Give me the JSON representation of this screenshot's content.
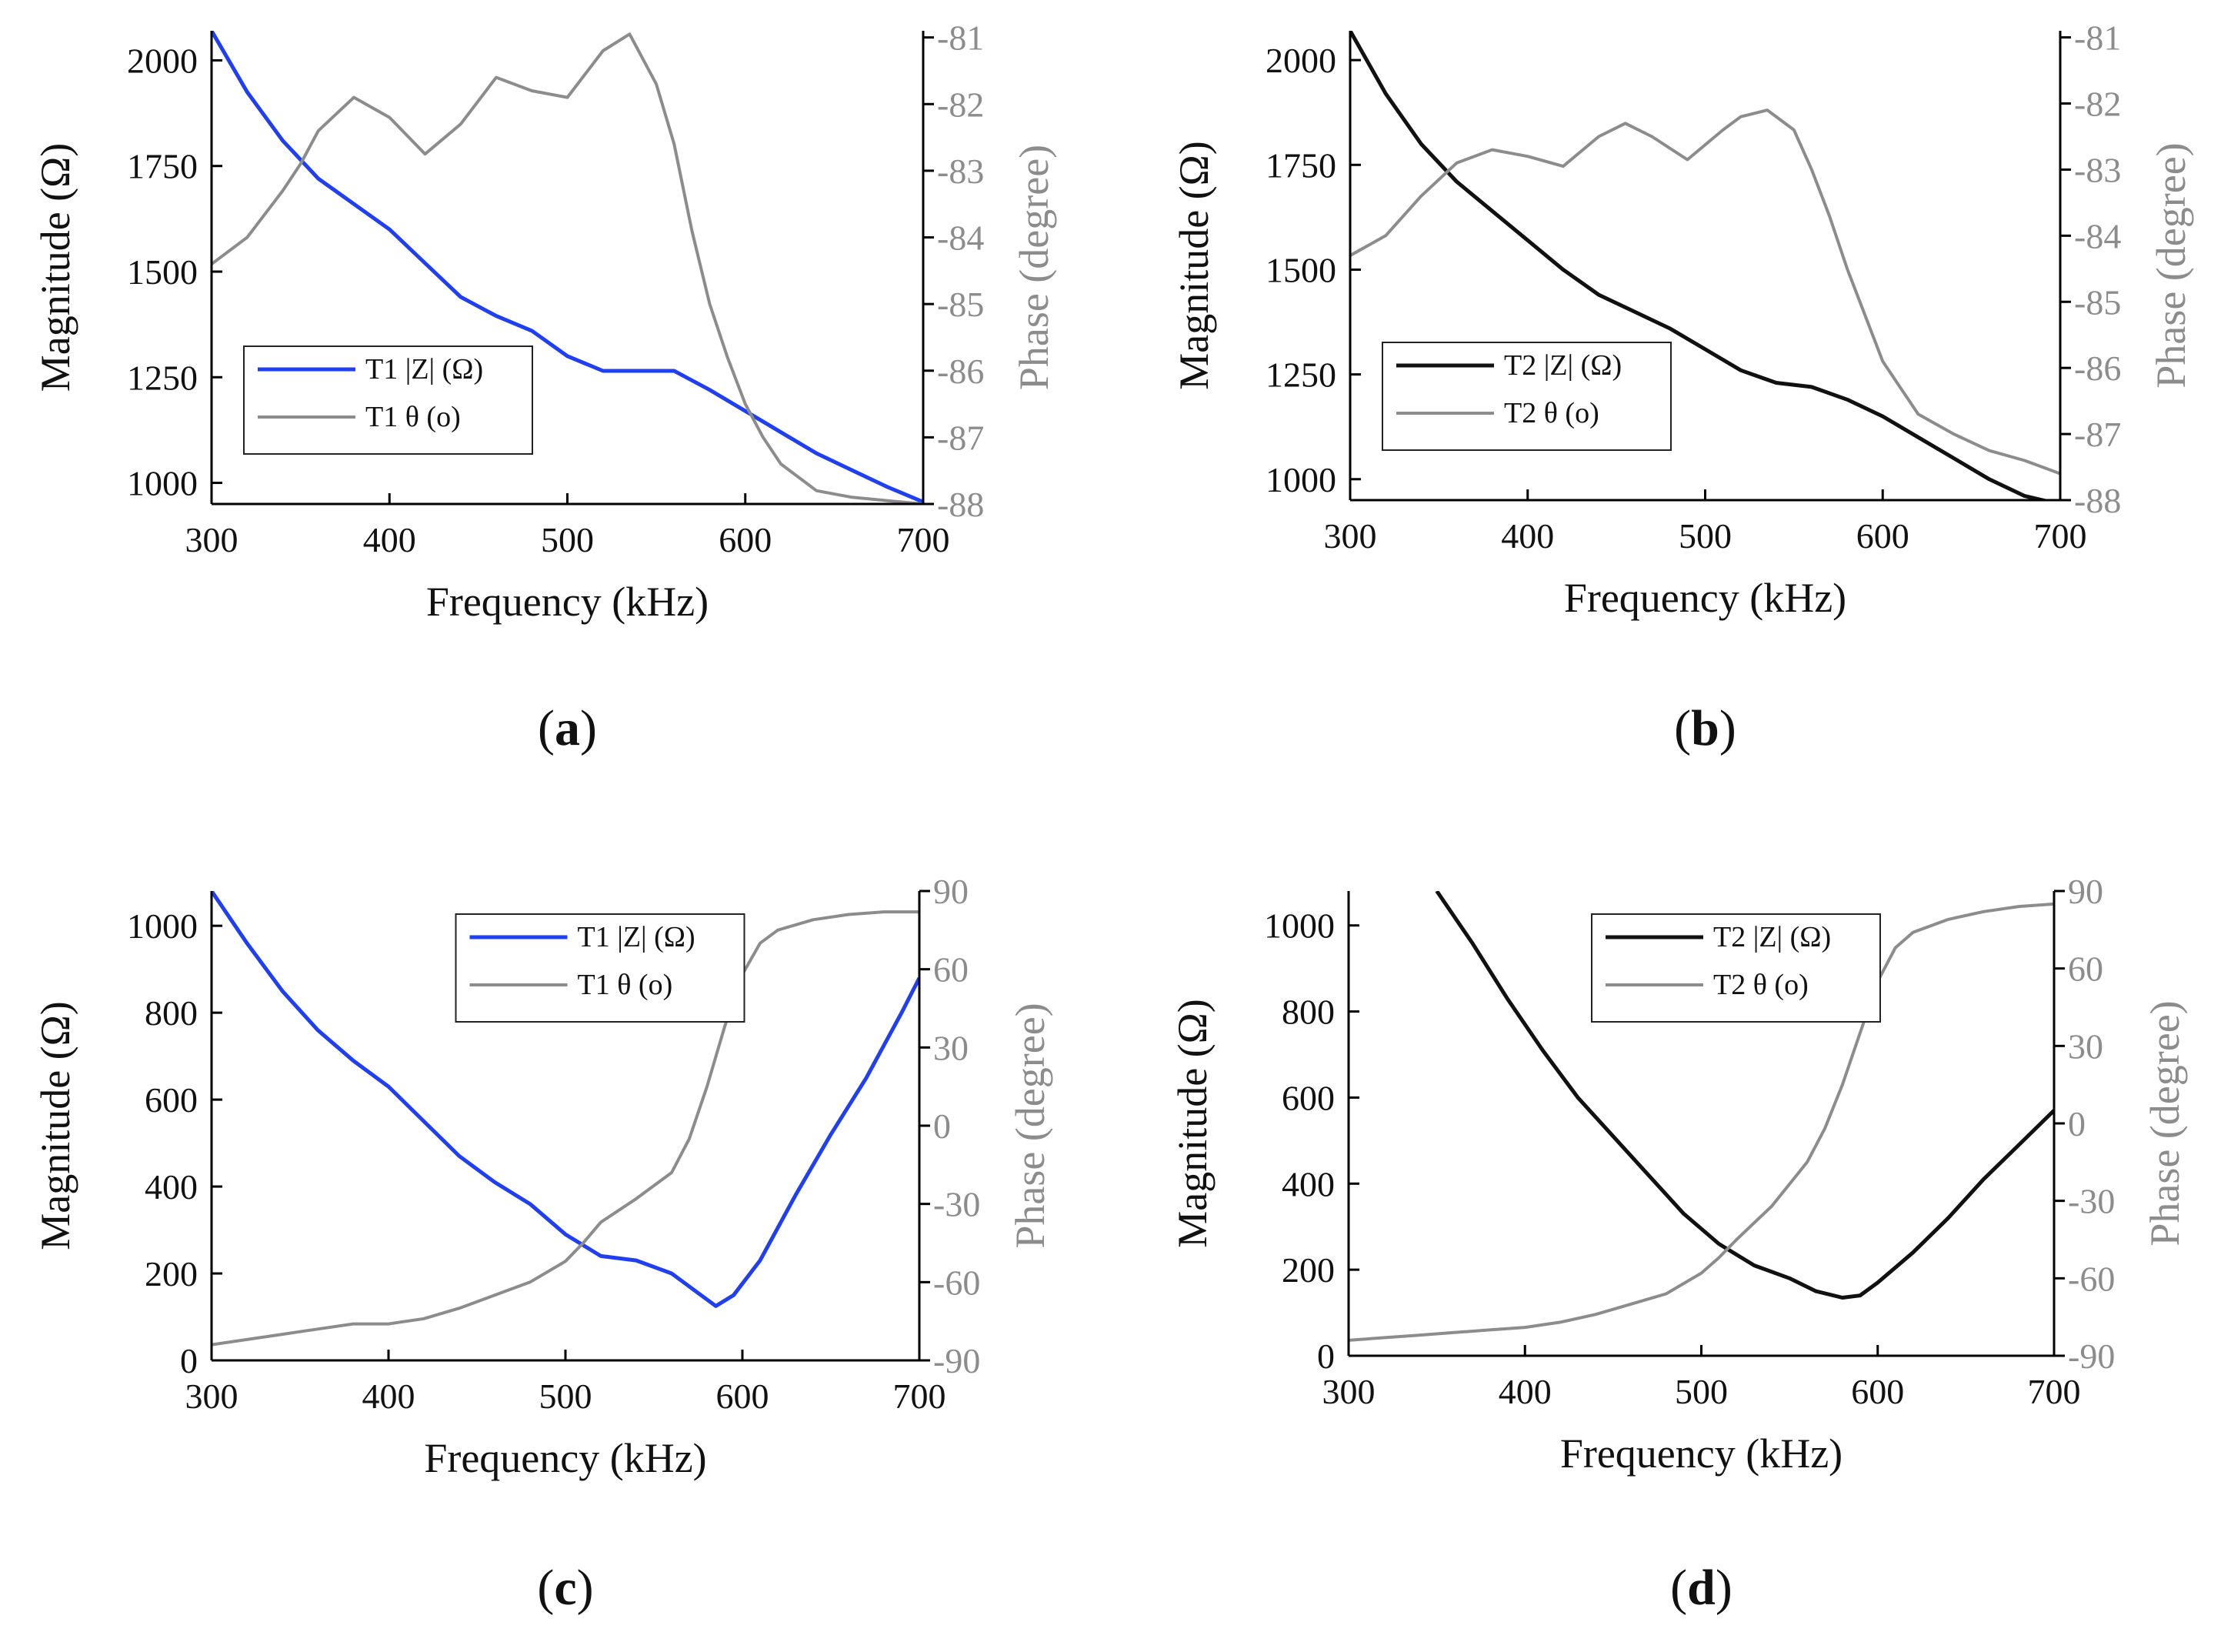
{
  "colors": {
    "blue": "#1f3ff0",
    "black": "#111111",
    "gray": "#8c8c8c",
    "axis": "#000000"
  },
  "chart_data": [
    {
      "type": "line",
      "panel_label": "a",
      "xlabel": "Frequency (kHz)",
      "ylabel": "Magnitude (Ω)",
      "y2label": "Phase (degree)",
      "xlim": [
        300,
        700
      ],
      "ylim": [
        950,
        2070
      ],
      "y2lim": [
        -88,
        -80.9
      ],
      "xticks": [
        300,
        400,
        500,
        600,
        700
      ],
      "yticks": [
        1000,
        1250,
        1500,
        1750,
        2000
      ],
      "y2ticks": [
        -88,
        -87,
        -86,
        -85,
        -84,
        -83,
        -82,
        -81
      ],
      "legend_position": "lower-left",
      "series": [
        {
          "name": "T1 |Z| (Ω)",
          "axis": "left",
          "color": "#1f3ff0",
          "x": [
            300,
            320,
            340,
            360,
            380,
            400,
            420,
            440,
            460,
            480,
            500,
            520,
            540,
            560,
            580,
            600,
            620,
            640,
            660,
            680,
            700
          ],
          "values": [
            2070,
            1925,
            1810,
            1720,
            1660,
            1600,
            1520,
            1440,
            1395,
            1360,
            1300,
            1265,
            1265,
            1265,
            1220,
            1170,
            1120,
            1070,
            1030,
            990,
            955
          ]
        },
        {
          "name": "T1 θ (o)",
          "axis": "right",
          "color": "#8c8c8c",
          "x": [
            300,
            320,
            340,
            350,
            360,
            380,
            400,
            420,
            440,
            460,
            480,
            500,
            520,
            535,
            550,
            560,
            570,
            580,
            590,
            600,
            610,
            620,
            640,
            660,
            680,
            700
          ],
          "values": [
            -84.4,
            -84.0,
            -83.3,
            -82.9,
            -82.4,
            -81.9,
            -82.2,
            -82.75,
            -82.3,
            -81.6,
            -81.8,
            -81.9,
            -81.2,
            -80.95,
            -81.7,
            -82.6,
            -83.9,
            -85.0,
            -85.8,
            -86.5,
            -87.0,
            -87.4,
            -87.8,
            -87.9,
            -87.95,
            -88.0
          ]
        }
      ]
    },
    {
      "type": "line",
      "panel_label": "b",
      "xlabel": "Frequency (kHz)",
      "ylabel": "Magnitude (Ω)",
      "y2label": "Phase (degree)",
      "xlim": [
        300,
        700
      ],
      "ylim": [
        950,
        2070
      ],
      "y2lim": [
        -88,
        -80.9
      ],
      "xticks": [
        300,
        400,
        500,
        600,
        700
      ],
      "yticks": [
        1000,
        1250,
        1500,
        1750,
        2000
      ],
      "y2ticks": [
        -88,
        -87,
        -86,
        -85,
        -84,
        -83,
        -82,
        -81
      ],
      "legend_position": "lower-left",
      "series": [
        {
          "name": "T2 |Z| (Ω)",
          "axis": "left",
          "color": "#111111",
          "x": [
            300,
            320,
            340,
            360,
            380,
            400,
            420,
            440,
            460,
            480,
            500,
            520,
            540,
            560,
            580,
            600,
            620,
            640,
            660,
            680,
            700
          ],
          "values": [
            2070,
            1920,
            1800,
            1710,
            1640,
            1570,
            1500,
            1440,
            1400,
            1360,
            1310,
            1260,
            1230,
            1220,
            1190,
            1150,
            1100,
            1050,
            1000,
            960,
            940
          ]
        },
        {
          "name": "T2 θ (o)",
          "axis": "right",
          "color": "#8c8c8c",
          "x": [
            300,
            320,
            340,
            360,
            380,
            400,
            420,
            440,
            455,
            470,
            490,
            510,
            520,
            535,
            550,
            560,
            570,
            580,
            600,
            620,
            640,
            660,
            680,
            700
          ],
          "values": [
            -84.3,
            -84.0,
            -83.4,
            -82.9,
            -82.7,
            -82.8,
            -82.95,
            -82.5,
            -82.3,
            -82.5,
            -82.85,
            -82.4,
            -82.2,
            -82.1,
            -82.4,
            -83.0,
            -83.7,
            -84.5,
            -85.9,
            -86.7,
            -87.0,
            -87.25,
            -87.4,
            -87.6
          ]
        }
      ]
    },
    {
      "type": "line",
      "panel_label": "c",
      "xlabel": "Frequency (kHz)",
      "ylabel": "Magnitude (Ω)",
      "y2label": "Phase (degree)",
      "xlim": [
        300,
        700
      ],
      "ylim": [
        0,
        1080
      ],
      "y2lim": [
        -90,
        90
      ],
      "xticks": [
        300,
        400,
        500,
        600,
        700
      ],
      "yticks": [
        0,
        200,
        400,
        600,
        800,
        1000
      ],
      "y2ticks": [
        -90,
        -60,
        -30,
        0,
        30,
        60,
        90
      ],
      "legend_position": "top-center",
      "series": [
        {
          "name": "T1 |Z| (Ω)",
          "axis": "left",
          "color": "#1f3ff0",
          "x": [
            300,
            320,
            340,
            360,
            380,
            400,
            420,
            440,
            460,
            480,
            500,
            520,
            540,
            560,
            575,
            585,
            595,
            610,
            630,
            650,
            670,
            690,
            700
          ],
          "values": [
            1080,
            960,
            850,
            760,
            690,
            630,
            550,
            470,
            410,
            360,
            290,
            240,
            230,
            200,
            155,
            125,
            150,
            230,
            380,
            520,
            650,
            800,
            880
          ]
        },
        {
          "name": "T1 θ (o)",
          "axis": "right",
          "color": "#8c8c8c",
          "x": [
            300,
            320,
            340,
            360,
            380,
            400,
            420,
            440,
            460,
            480,
            500,
            510,
            520,
            540,
            560,
            570,
            580,
            590,
            600,
            610,
            620,
            640,
            660,
            680,
            700
          ],
          "values": [
            -84,
            -82,
            -80,
            -78,
            -76,
            -76,
            -74,
            -70,
            -65,
            -60,
            -52,
            -45,
            -37,
            -28,
            -18,
            -5,
            15,
            38,
            58,
            70,
            75,
            79,
            81,
            82,
            82
          ]
        }
      ]
    },
    {
      "type": "line",
      "panel_label": "d",
      "xlabel": "Frequency (kHz)",
      "ylabel": "Magnitude (Ω)",
      "y2label": "Phase (degree)",
      "xlim": [
        300,
        700
      ],
      "ylim": [
        0,
        1080
      ],
      "y2lim": [
        -90,
        90
      ],
      "xticks": [
        300,
        400,
        500,
        600,
        700
      ],
      "yticks": [
        0,
        200,
        400,
        600,
        800,
        1000
      ],
      "y2ticks": [
        -90,
        -60,
        -30,
        0,
        30,
        60,
        90
      ],
      "legend_position": "top-center",
      "series": [
        {
          "name": "T2 |Z| (Ω)",
          "axis": "left",
          "color": "#111111",
          "x": [
            350,
            370,
            390,
            410,
            430,
            450,
            470,
            490,
            510,
            530,
            550,
            565,
            580,
            590,
            600,
            620,
            640,
            660,
            680,
            700
          ],
          "values": [
            1080,
            960,
            830,
            710,
            600,
            510,
            420,
            330,
            260,
            210,
            180,
            150,
            135,
            140,
            170,
            240,
            320,
            410,
            490,
            570
          ]
        },
        {
          "name": "T2 θ (o)",
          "axis": "right",
          "color": "#8c8c8c",
          "x": [
            300,
            320,
            340,
            360,
            380,
            400,
            420,
            440,
            460,
            480,
            500,
            510,
            520,
            540,
            560,
            570,
            580,
            590,
            600,
            610,
            620,
            640,
            660,
            680,
            700
          ],
          "values": [
            -84,
            -83,
            -82,
            -81,
            -80,
            -79,
            -77,
            -74,
            -70,
            -66,
            -58,
            -52,
            -45,
            -32,
            -15,
            -2,
            15,
            35,
            55,
            68,
            74,
            79,
            82,
            84,
            85
          ]
        }
      ]
    }
  ]
}
